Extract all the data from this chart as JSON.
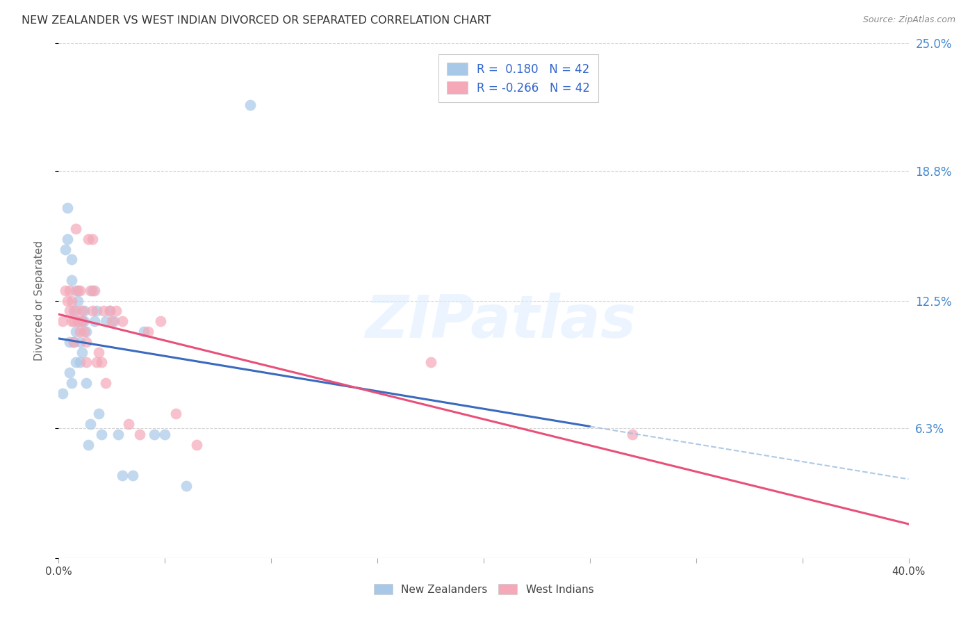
{
  "title": "NEW ZEALANDER VS WEST INDIAN DIVORCED OR SEPARATED CORRELATION CHART",
  "source": "Source: ZipAtlas.com",
  "ylabel": "Divorced or Separated",
  "legend_label_nz": "New Zealanders",
  "legend_label_wi": "West Indians",
  "R_nz": 0.18,
  "R_wi": -0.266,
  "N": 42,
  "xlim": [
    0.0,
    0.4
  ],
  "ylim": [
    0.0,
    0.25
  ],
  "xticks": [
    0.0,
    0.05,
    0.1,
    0.15,
    0.2,
    0.25,
    0.3,
    0.35,
    0.4
  ],
  "yticks": [
    0.0,
    0.063,
    0.125,
    0.188,
    0.25
  ],
  "ytick_labels": [
    "",
    "6.3%",
    "12.5%",
    "18.8%",
    "25.0%"
  ],
  "color_nz": "#a8c8e8",
  "color_wi": "#f4a8b8",
  "line_color_nz": "#3a6abf",
  "line_color_wi": "#e8507a",
  "line_color_nz_dash": "#a0c0e0",
  "background_color": "#ffffff",
  "grid_color": "#cccccc",
  "nz_x": [
    0.002,
    0.003,
    0.004,
    0.004,
    0.005,
    0.005,
    0.006,
    0.006,
    0.006,
    0.007,
    0.007,
    0.008,
    0.008,
    0.008,
    0.009,
    0.009,
    0.01,
    0.01,
    0.011,
    0.011,
    0.012,
    0.012,
    0.013,
    0.013,
    0.014,
    0.015,
    0.016,
    0.017,
    0.018,
    0.019,
    0.02,
    0.022,
    0.024,
    0.026,
    0.028,
    0.03,
    0.035,
    0.04,
    0.045,
    0.05,
    0.06,
    0.09
  ],
  "nz_y": [
    0.08,
    0.15,
    0.155,
    0.17,
    0.09,
    0.105,
    0.085,
    0.135,
    0.145,
    0.105,
    0.12,
    0.11,
    0.095,
    0.13,
    0.115,
    0.125,
    0.095,
    0.105,
    0.115,
    0.1,
    0.115,
    0.12,
    0.085,
    0.11,
    0.055,
    0.065,
    0.13,
    0.115,
    0.12,
    0.07,
    0.06,
    0.115,
    0.12,
    0.115,
    0.06,
    0.04,
    0.04,
    0.11,
    0.06,
    0.06,
    0.035,
    0.22
  ],
  "wi_x": [
    0.002,
    0.003,
    0.004,
    0.005,
    0.005,
    0.006,
    0.006,
    0.007,
    0.007,
    0.008,
    0.008,
    0.009,
    0.009,
    0.01,
    0.01,
    0.011,
    0.011,
    0.012,
    0.013,
    0.013,
    0.014,
    0.015,
    0.016,
    0.016,
    0.017,
    0.018,
    0.019,
    0.02,
    0.021,
    0.022,
    0.024,
    0.025,
    0.027,
    0.03,
    0.033,
    0.038,
    0.042,
    0.048,
    0.055,
    0.065,
    0.175,
    0.27
  ],
  "wi_y": [
    0.115,
    0.13,
    0.125,
    0.12,
    0.13,
    0.115,
    0.125,
    0.115,
    0.105,
    0.12,
    0.16,
    0.115,
    0.13,
    0.11,
    0.13,
    0.12,
    0.115,
    0.11,
    0.095,
    0.105,
    0.155,
    0.13,
    0.12,
    0.155,
    0.13,
    0.095,
    0.1,
    0.095,
    0.12,
    0.085,
    0.12,
    0.115,
    0.12,
    0.115,
    0.065,
    0.06,
    0.11,
    0.115,
    0.07,
    0.055,
    0.095,
    0.06
  ],
  "solid_line_end_x": 0.25
}
